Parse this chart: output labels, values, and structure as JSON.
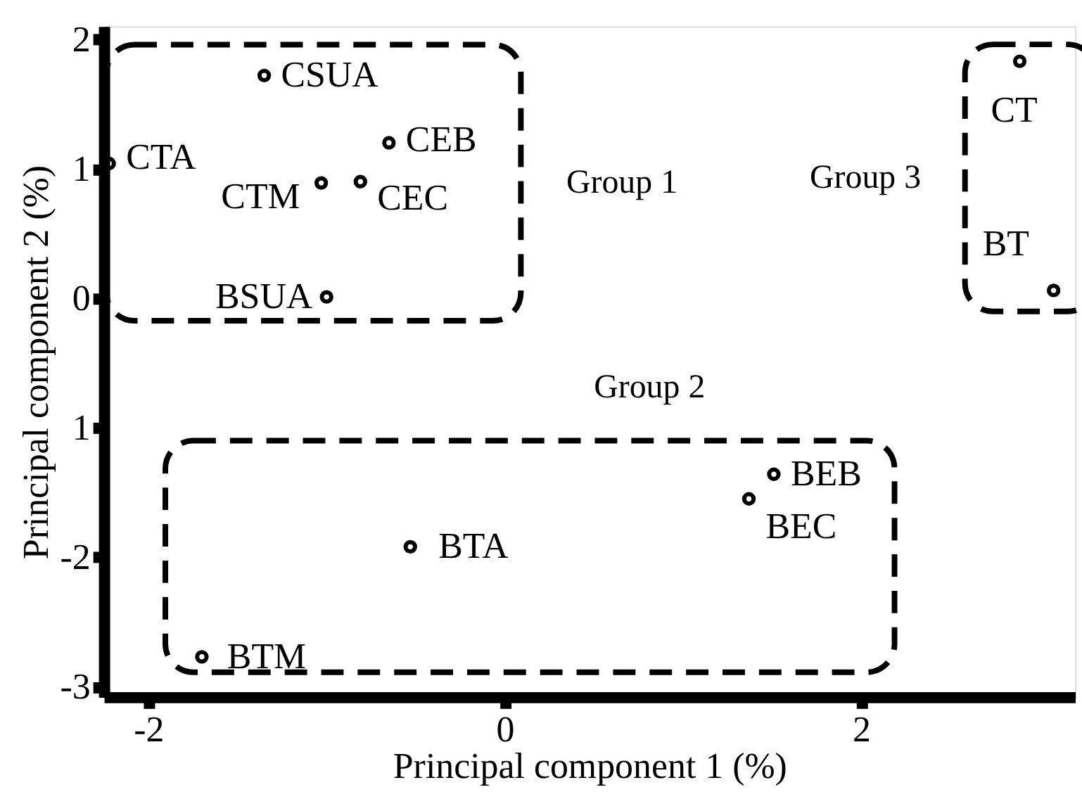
{
  "chart_data": {
    "type": "scatter",
    "xlabel": "Principal component 1 (%)",
    "ylabel": "Principal component 2 (%)",
    "xlim": [
      -2.25,
      3.2
    ],
    "ylim": [
      -3.08,
      2.1
    ],
    "xticks": [
      -2,
      0,
      2
    ],
    "yticks": [
      2,
      1,
      0,
      {
        "value": -1,
        "label": "1"
      },
      -2,
      -3
    ],
    "grid": false,
    "marker": "circle",
    "annotations": [
      "Group 1",
      "Group 2",
      "Group 3"
    ],
    "series": [
      {
        "color": "#000000",
        "x": [
          -1.35,
          -2.22,
          -0.65,
          -1.03,
          -0.81,
          -1.0
        ],
        "values": [
          1.72,
          1.04,
          1.2,
          0.89,
          0.9,
          0.01
        ],
        "value_labels": [
          "CSUA",
          "CTA",
          "CEB",
          "CTM",
          "CEC",
          "BSUA"
        ]
      },
      {
        "color": "#000000",
        "x": [
          1.51,
          1.37,
          -0.53,
          -1.7
        ],
        "values": [
          -1.36,
          -1.55,
          -1.92,
          -2.77
        ],
        "value_labels": [
          "BEB",
          "BEC",
          "BTA",
          "BTM"
        ]
      },
      {
        "color": "#000000",
        "x": [
          2.89,
          3.08
        ],
        "values": [
          1.83,
          0.06
        ],
        "value_labels": [
          "CT",
          "BT"
        ]
      }
    ]
  }
}
